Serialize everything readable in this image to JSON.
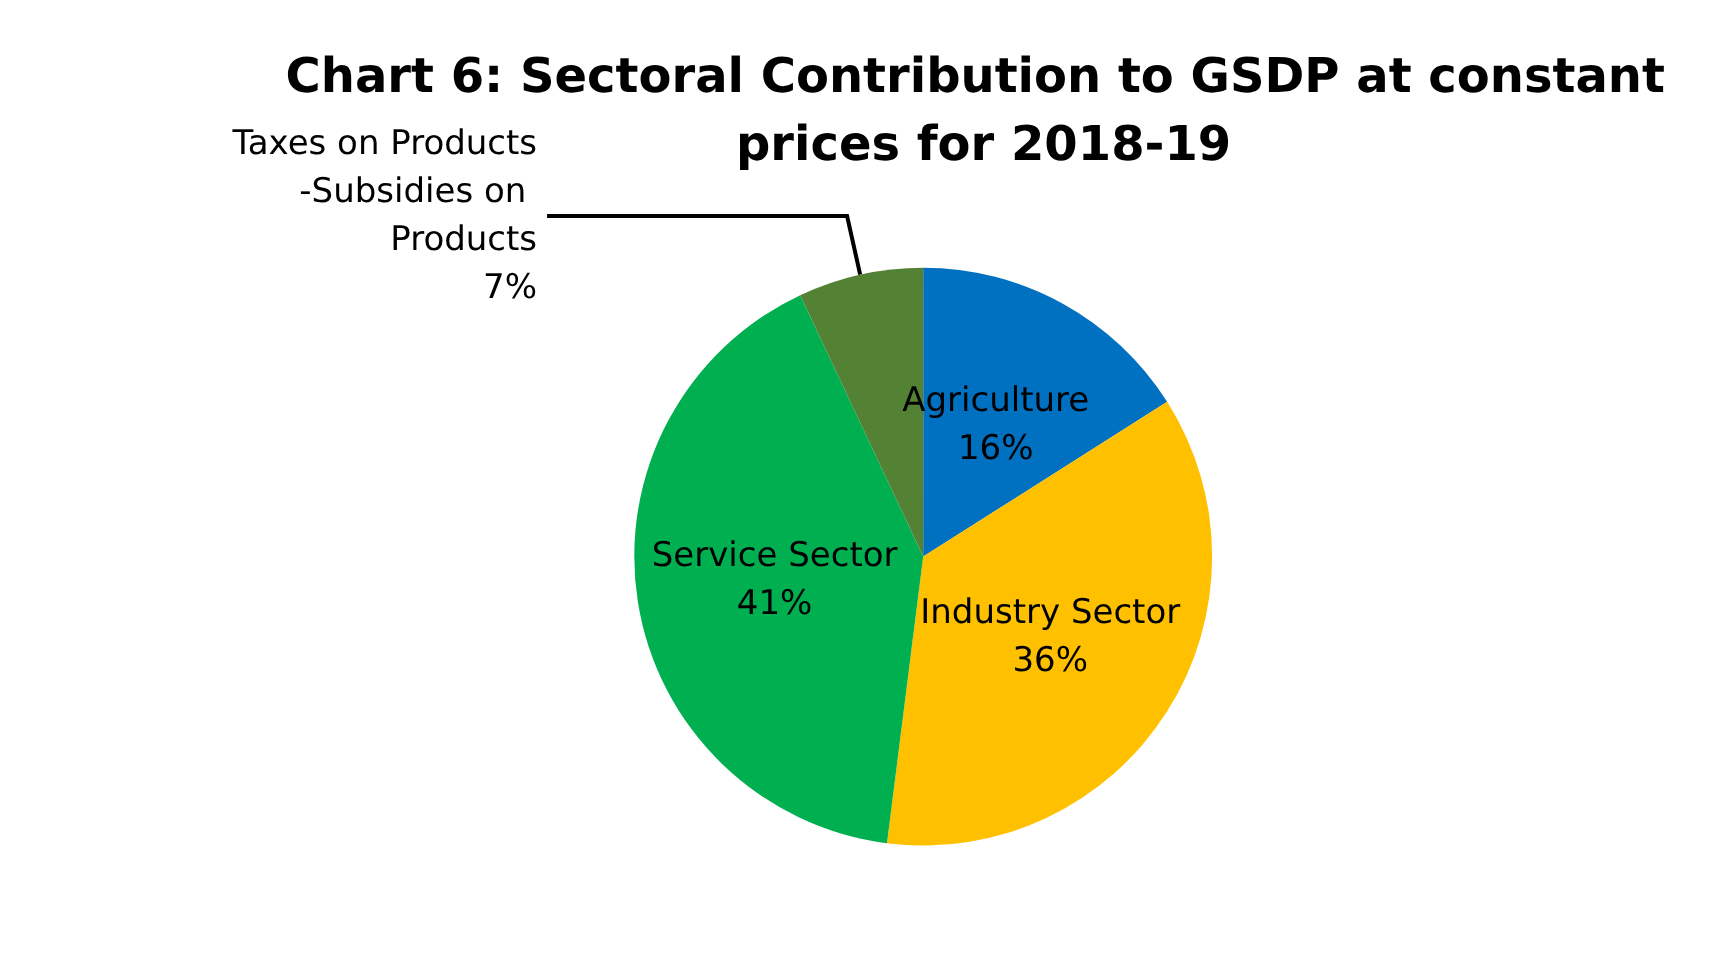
{
  "chart_data": {
    "type": "pie",
    "title": "Chart 6: Sectoral Contribution to GSDP at constant prices for 2018-19",
    "categories": [
      "Agriculture",
      "Industry Sector",
      "Service Sector",
      "Taxes on Products -Subsidies on Products"
    ],
    "values": [
      16,
      36,
      41,
      7
    ],
    "colors": [
      "#0070c0",
      "#ffc000",
      "#00b050",
      "#548235"
    ],
    "value_labels": [
      "16%",
      "36%",
      "41%",
      "7%"
    ],
    "legend": false
  }
}
